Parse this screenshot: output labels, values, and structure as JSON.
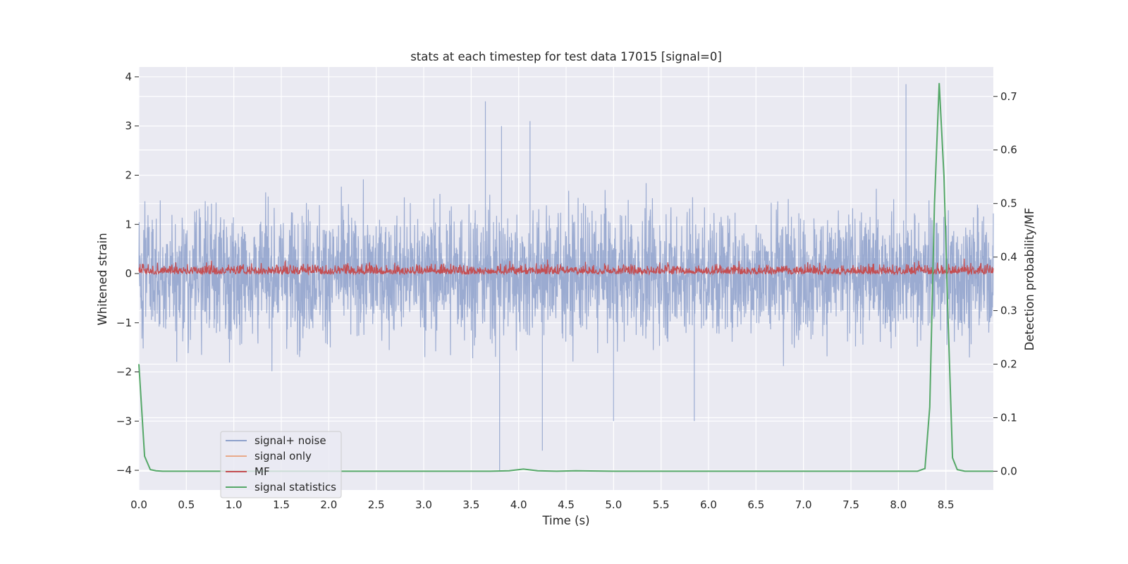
{
  "chart_data": {
    "type": "line",
    "title": "stats at each timestep for test data 17015 [signal=0]",
    "xlabel": "Time (s)",
    "ylabel": "Whitened strain",
    "y2label": "Detection probability/MF",
    "xlim": [
      0,
      9.0
    ],
    "ylim": [
      -4.4,
      4.2
    ],
    "y2lim": [
      -0.035,
      0.755
    ],
    "xticks": [
      "0.0",
      "0.5",
      "1.0",
      "1.5",
      "2.0",
      "2.5",
      "3.0",
      "3.5",
      "4.0",
      "4.5",
      "5.0",
      "5.5",
      "6.0",
      "6.5",
      "7.0",
      "7.5",
      "8.0",
      "8.5"
    ],
    "yticks": [
      "−4",
      "−3",
      "−2",
      "−1",
      "0",
      "1",
      "2",
      "3",
      "4"
    ],
    "y2ticks": [
      "0.0",
      "0.1",
      "0.2",
      "0.3",
      "0.4",
      "0.5",
      "0.6",
      "0.7"
    ],
    "grid": true,
    "legend_position": "lower-left",
    "colors": {
      "signal_noise": "#8da0cb",
      "signal_only": "#e9a98a",
      "mf": "#c44e52",
      "signal_statistics": "#55a868",
      "plot_background": "#eaeaf2",
      "grid": "#ffffff"
    },
    "series": [
      {
        "name": "signal+ noise",
        "axis": "left",
        "description_range": [
          -2.5,
          2.5
        ],
        "peaks": [
          {
            "x": 3.65,
            "y": 3.5
          },
          {
            "x": 3.8,
            "y": -4.0
          },
          {
            "x": 4.25,
            "y": -3.6
          },
          {
            "x": 8.08,
            "y": 3.85
          },
          {
            "x": 5.0,
            "y": -3.0
          },
          {
            "x": 5.85,
            "y": -3.0
          },
          {
            "x": 3.82,
            "y": 3.0
          },
          {
            "x": 4.12,
            "y": 3.1
          }
        ]
      },
      {
        "name": "signal only",
        "axis": "left",
        "values": []
      },
      {
        "name": "MF",
        "axis": "right",
        "range": [
          0.368,
          0.41
        ]
      },
      {
        "name": "signal statistics",
        "axis": "right",
        "x": [
          0.0,
          0.06,
          0.12,
          0.18,
          0.25,
          0.5,
          1.0,
          2.0,
          3.0,
          3.7,
          3.9,
          4.05,
          4.2,
          4.4,
          4.6,
          5.0,
          6.0,
          7.0,
          8.0,
          8.2,
          8.28,
          8.33,
          8.38,
          8.43,
          8.48,
          8.52,
          8.57,
          8.62,
          8.7,
          9.0
        ],
        "values": [
          0.2,
          0.028,
          0.003,
          0.001,
          0.0,
          0.0,
          0.0,
          0.0,
          0.0,
          0.0,
          0.001,
          0.004,
          0.001,
          0.0,
          0.001,
          0.0,
          0.0,
          0.0,
          0.0,
          0.0,
          0.005,
          0.12,
          0.5,
          0.725,
          0.55,
          0.3,
          0.025,
          0.003,
          0.0,
          0.0
        ]
      }
    ]
  }
}
